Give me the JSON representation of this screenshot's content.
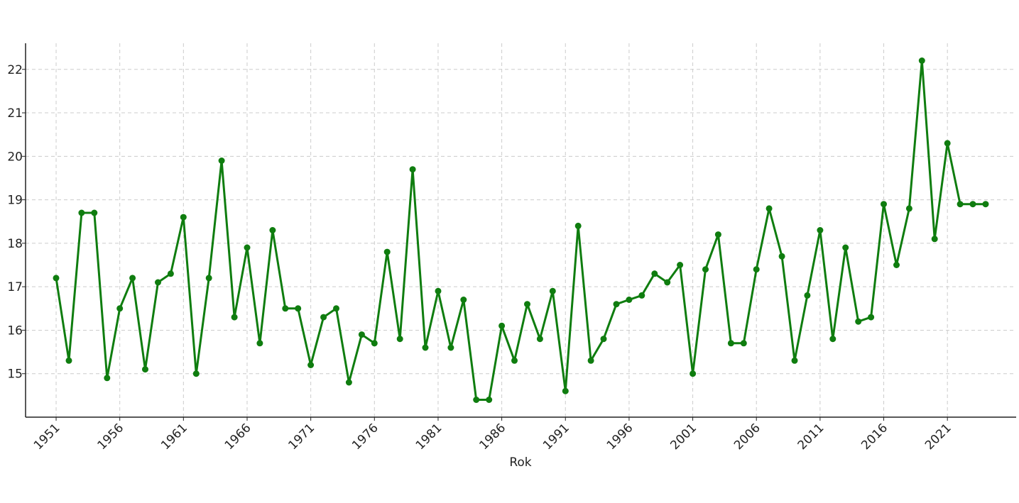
{
  "chart_data": {
    "type": "line",
    "title": "",
    "xlabel": "Rok",
    "ylabel": "",
    "x_ticks": [
      1951,
      1956,
      1961,
      1966,
      1971,
      1976,
      1981,
      1986,
      1991,
      1996,
      2001,
      2006,
      2011,
      2016,
      2021
    ],
    "y_ticks": [
      15,
      16,
      17,
      18,
      19,
      20,
      21,
      22
    ],
    "xlim": [
      1948.6,
      2026.4
    ],
    "ylim": [
      14.0,
      22.6
    ],
    "grid": true,
    "legend": "none",
    "line_color": "#0f7d0f",
    "grid_color": "#cccccc",
    "x": [
      1951,
      1952,
      1953,
      1954,
      1955,
      1956,
      1957,
      1958,
      1959,
      1960,
      1961,
      1962,
      1963,
      1964,
      1965,
      1966,
      1967,
      1968,
      1969,
      1970,
      1971,
      1972,
      1973,
      1974,
      1975,
      1976,
      1977,
      1978,
      1979,
      1980,
      1981,
      1982,
      1983,
      1984,
      1985,
      1986,
      1987,
      1988,
      1989,
      1990,
      1991,
      1992,
      1993,
      1994,
      1995,
      1996,
      1997,
      1998,
      1999,
      2000,
      2001,
      2002,
      2003,
      2004,
      2005,
      2006,
      2007,
      2008,
      2009,
      2010,
      2011,
      2012,
      2013,
      2014,
      2015,
      2016,
      2017,
      2018,
      2019,
      2020,
      2021,
      2022,
      2023,
      2024
    ],
    "values": [
      17.2,
      15.3,
      18.7,
      18.7,
      14.9,
      16.5,
      17.2,
      15.1,
      17.1,
      17.3,
      18.6,
      15.0,
      17.2,
      19.9,
      16.3,
      17.9,
      15.7,
      18.3,
      16.5,
      16.5,
      15.2,
      16.3,
      16.5,
      14.8,
      15.9,
      15.7,
      17.8,
      15.8,
      19.7,
      15.6,
      16.9,
      15.6,
      16.7,
      14.4,
      14.4,
      16.1,
      15.3,
      16.6,
      15.8,
      16.9,
      14.6,
      18.4,
      15.3,
      15.8,
      16.6,
      16.7,
      16.8,
      17.3,
      17.1,
      17.5,
      15.0,
      17.4,
      18.2,
      15.7,
      15.7,
      17.4,
      18.8,
      17.7,
      15.3,
      16.8,
      18.3,
      15.8,
      17.9,
      16.2,
      16.3,
      18.9,
      17.5,
      18.8,
      22.2,
      18.1,
      20.3,
      18.9,
      18.9,
      18.9
    ]
  }
}
